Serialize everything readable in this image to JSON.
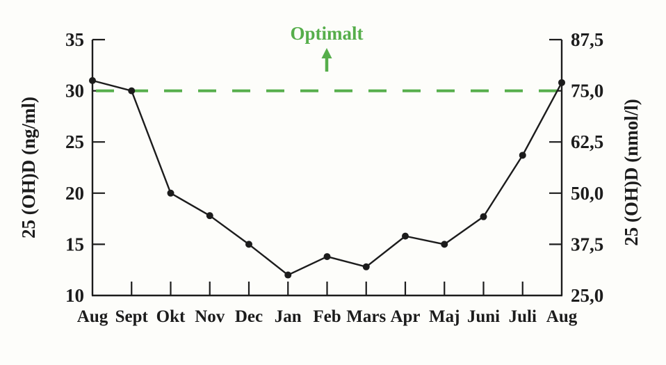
{
  "page": {
    "background": "#fdfdfa"
  },
  "chart_data": {
    "type": "line",
    "title": "",
    "x": [
      "Aug",
      "Sept",
      "Okt",
      "Nov",
      "Dec",
      "Jan",
      "Feb",
      "Mars",
      "Apr",
      "Maj",
      "Juni",
      "Juli",
      "Aug"
    ],
    "series": [
      {
        "name": "25 (OH)D",
        "color": "#1c1c1c",
        "values": [
          31,
          30,
          20,
          17.8,
          15,
          12,
          13.8,
          12.8,
          15.8,
          15,
          17.7,
          23.7,
          30.8
        ]
      }
    ],
    "left_axis": {
      "label": "25 (OH)D (ng/ml)",
      "tick_values": [
        35,
        30,
        25,
        20,
        15,
        10
      ],
      "tick_labels": [
        "35",
        "30",
        "25",
        "20",
        "15",
        "10"
      ],
      "min": 10,
      "max": 35
    },
    "right_axis": {
      "label": "25 (OH)D (nmol/l)",
      "tick_values": [
        35,
        30,
        25,
        20,
        15,
        10
      ],
      "tick_labels": [
        "87,5",
        "75,0",
        "62,5",
        "50,0",
        "37,5",
        "25,0"
      ]
    },
    "reference_line": {
      "value": 30,
      "label": "Optimalt",
      "color": "#56ae4b",
      "style": "dashed"
    },
    "grid": false,
    "legend": false
  }
}
